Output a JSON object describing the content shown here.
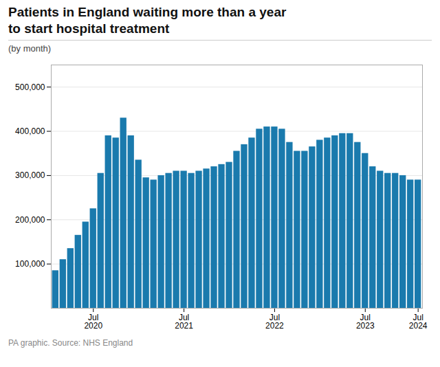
{
  "chart_data": {
    "type": "bar",
    "title": "Patients in England waiting more than a year\nto start hospital treatment",
    "subtitle": "(by month)",
    "source": "PA graphic. Source: NHS England",
    "color": "#1a7aad",
    "categories": [
      null,
      null,
      null,
      null,
      null,
      "Jul\n2020",
      null,
      null,
      null,
      null,
      null,
      null,
      null,
      null,
      null,
      null,
      null,
      "Jul\n2021",
      null,
      null,
      null,
      null,
      null,
      null,
      null,
      null,
      null,
      null,
      null,
      "Jul\n2022",
      null,
      null,
      null,
      null,
      null,
      null,
      null,
      null,
      null,
      null,
      null,
      "Jul\n2023",
      null,
      null,
      null,
      null,
      null,
      null,
      "Jul\n2024"
    ],
    "values": [
      85000,
      110000,
      135000,
      165000,
      195000,
      225000,
      305000,
      390000,
      385000,
      430000,
      390000,
      335000,
      295000,
      290000,
      300000,
      305000,
      310000,
      310000,
      305000,
      310000,
      315000,
      320000,
      325000,
      330000,
      355000,
      370000,
      385000,
      405000,
      410000,
      410000,
      405000,
      375000,
      355000,
      355000,
      365000,
      380000,
      385000,
      390000,
      395000,
      395000,
      375000,
      350000,
      320000,
      310000,
      305000,
      305000,
      300000,
      290000,
      290000
    ],
    "ylim": [
      0,
      550000
    ],
    "yticks": [
      {
        "value": 100000,
        "label": "100,000"
      },
      {
        "value": 200000,
        "label": "200,000"
      },
      {
        "value": 300000,
        "label": "300,000"
      },
      {
        "value": 400000,
        "label": "400,000"
      },
      {
        "value": 500000,
        "label": "500,000"
      }
    ],
    "grid": true
  }
}
